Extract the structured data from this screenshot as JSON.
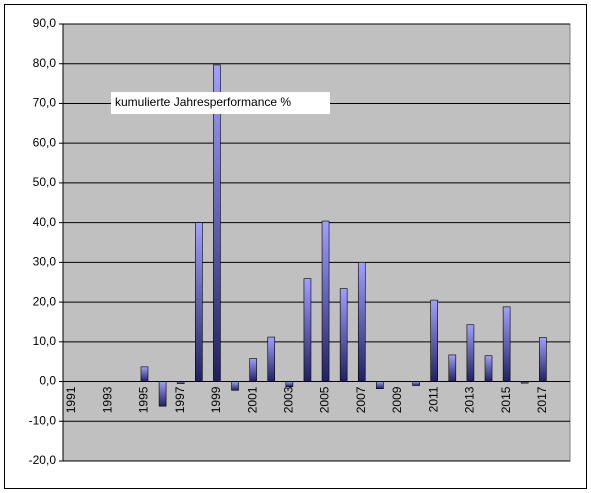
{
  "chart_data": {
    "type": "bar",
    "annotation": "kumulierte Jahresperformance %",
    "categories": [
      "1991",
      null,
      "1993",
      null,
      "1995",
      null,
      "1997",
      null,
      "1999",
      null,
      "2001",
      null,
      "2003",
      null,
      "2005",
      null,
      "2007",
      null,
      "2009",
      null,
      "2011",
      null,
      "2013",
      null,
      "2015",
      null,
      "2017"
    ],
    "values": [
      0,
      0,
      0,
      0,
      3.7,
      -6.2,
      -0.5,
      40,
      79.7,
      -2.2,
      5.8,
      11.2,
      -1.3,
      25.9,
      40.4,
      23.4,
      30,
      -1.8,
      0,
      -1,
      20.5,
      6.7,
      14.3,
      6.5,
      18.8,
      -0.4,
      11.1
    ],
    "color": "#9999ff",
    "ylim": [
      -20,
      90
    ],
    "yticks": [
      {
        "value": -20,
        "label": "-20,0"
      },
      {
        "value": -10,
        "label": "-10,0"
      },
      {
        "value": 0,
        "label": "0,0"
      },
      {
        "value": 10,
        "label": "10,0"
      },
      {
        "value": 20,
        "label": "20,0"
      },
      {
        "value": 30,
        "label": "30,0"
      },
      {
        "value": 40,
        "label": "40,0"
      },
      {
        "value": 50,
        "label": "50,0"
      },
      {
        "value": 60,
        "label": "60,0"
      },
      {
        "value": 70,
        "label": "70,0"
      },
      {
        "value": 80,
        "label": "80,0"
      },
      {
        "value": 90,
        "label": "90,0"
      }
    ],
    "grid": true
  }
}
